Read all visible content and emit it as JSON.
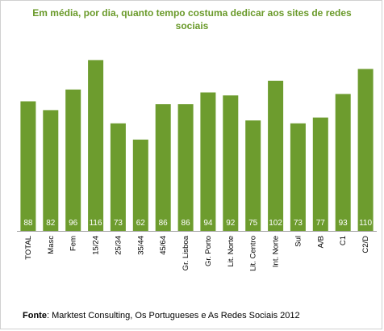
{
  "chart_data": {
    "type": "bar",
    "title": "Em média, por dia,  quanto tempo costuma dedicar aos sites de redes sociais",
    "xlabel": "",
    "ylabel": "",
    "ylim": [
      0,
      125
    ],
    "grid": false,
    "legend": "none",
    "categories": [
      "TOTAL",
      "Masc",
      "Fem",
      "15/24",
      "25/34",
      "35/44",
      "45/64",
      "Gr. Lisboa",
      "Gr. Porto",
      "Lit. Norte",
      "Lit. Centro",
      "Int. Norte",
      "Sul",
      "A/B",
      "C1",
      "C2/D"
    ],
    "values": [
      88,
      82,
      96,
      116,
      73,
      62,
      86,
      86,
      94,
      92,
      75,
      102,
      73,
      77,
      93,
      110
    ],
    "colors": {
      "bar": "#6d9c2e",
      "bar_label": "#ffffff",
      "title": "#6a9a2a",
      "axis": "#a0a0a0"
    }
  },
  "source": {
    "label": "Fonte",
    "text": ": Marktest Consulting, Os Portugueses e As Redes Sociais 2012"
  }
}
